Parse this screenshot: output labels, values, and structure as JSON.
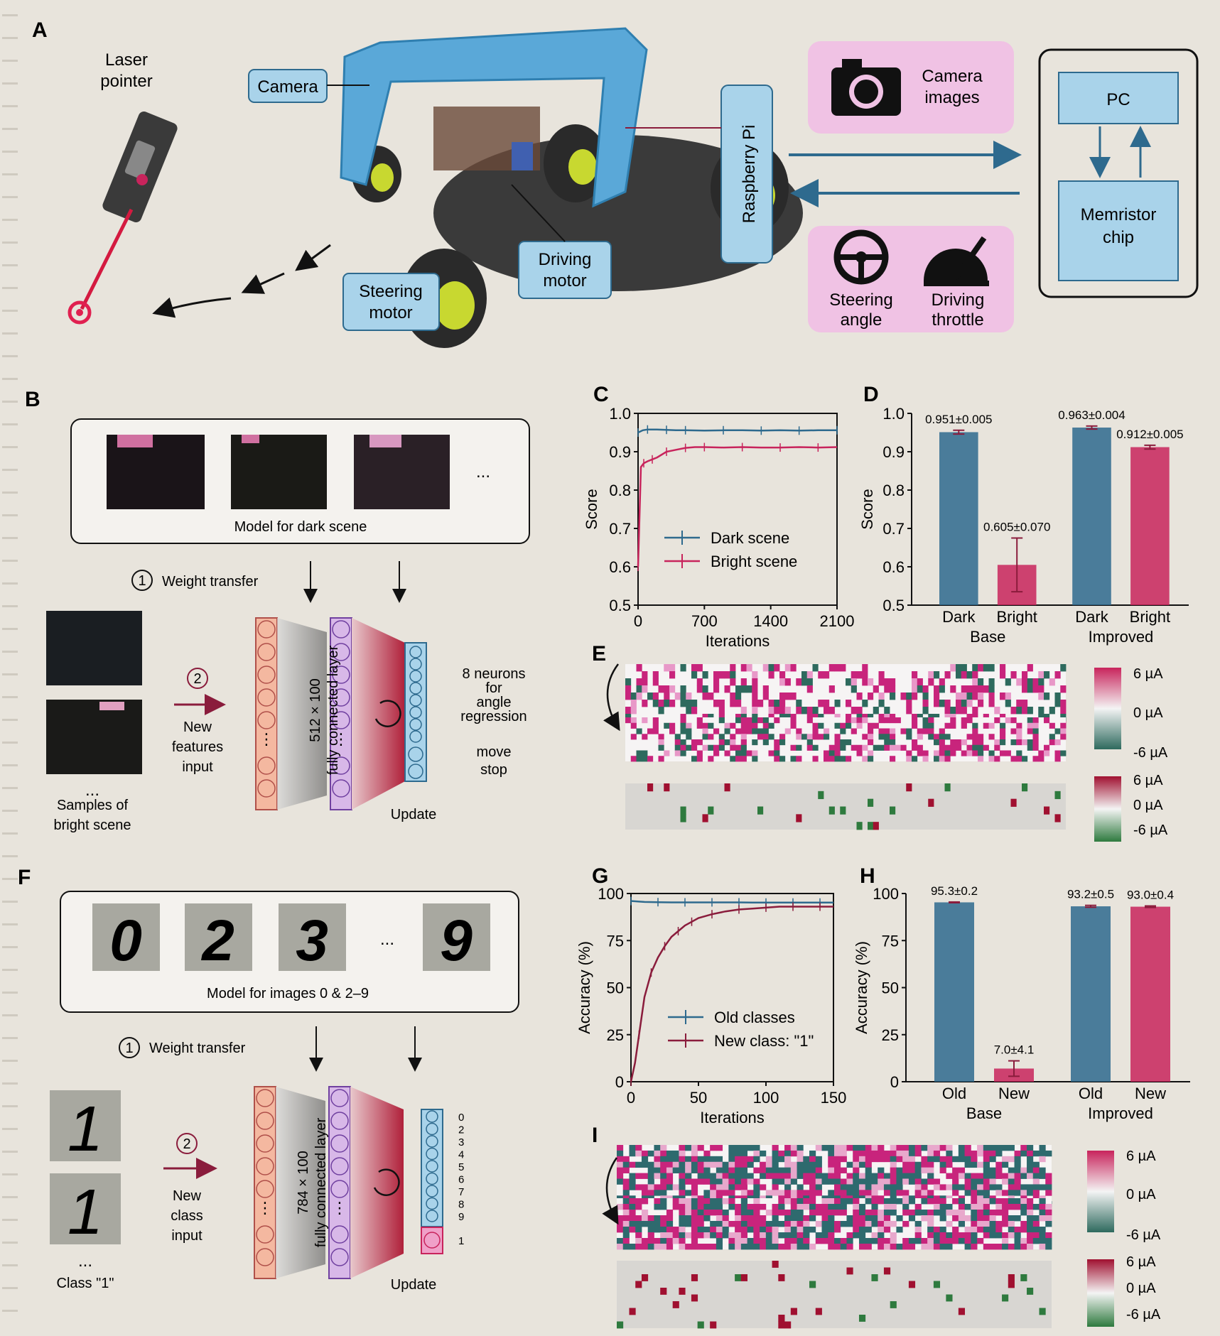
{
  "panels": [
    "A",
    "B",
    "C",
    "D",
    "E",
    "F",
    "G",
    "H",
    "I"
  ],
  "panel_a": {
    "laser": [
      "Laser",
      "pointer"
    ],
    "camera": "Camera",
    "steering_motor": [
      "Steering",
      "motor"
    ],
    "driving_motor": [
      "Driving",
      "motor"
    ],
    "raspberry": "Raspberry Pi",
    "camera_images": [
      "Camera",
      "images"
    ],
    "steering_angle": [
      "Steering",
      "angle"
    ],
    "driving_throttle": [
      "Driving",
      "throttle"
    ],
    "pc": "PC",
    "memristor": [
      "Memristor",
      "chip"
    ]
  },
  "panel_b": {
    "model_label": "Model for dark scene",
    "ellipsis": "...",
    "weight_transfer": "Weight transfer",
    "step1": "1",
    "step2": "2",
    "new_input": [
      "New",
      "features",
      "input"
    ],
    "samples": [
      "Samples of",
      "bright scene"
    ],
    "samples_dots": "...",
    "fc_layer": "512 × 100",
    "fc_sub": "fully connected layer",
    "update": "Update",
    "neurons": [
      "8 neurons",
      "for",
      "angle",
      "regression"
    ],
    "move_stop": [
      "move",
      "stop"
    ]
  },
  "panel_f": {
    "model_label": "Model for images 0 & 2–9",
    "digits": [
      "0",
      "2",
      "3",
      "9"
    ],
    "ellipsis": "...",
    "weight_transfer": "Weight transfer",
    "step1": "1",
    "step2": "2",
    "new_input": [
      "New",
      "class",
      "input"
    ],
    "class_label": "Class \"1\"",
    "class_dots": "...",
    "input_digit": "1",
    "fc_layer": "784 × 100",
    "fc_sub": "fully connected layer",
    "update": "Update",
    "out_labels": [
      "0",
      "2",
      "3",
      "4",
      "5",
      "6",
      "7",
      "8",
      "9"
    ],
    "new_out": "1"
  },
  "panel_e": {
    "colorbar1": [
      "6 µA",
      "0 µA",
      "-6 µA"
    ],
    "colorbar2": [
      "6 µA",
      "0 µA",
      "-6 µA"
    ]
  },
  "panel_i": {
    "colorbar1": [
      "6 µA",
      "0 µA",
      "-6 µA"
    ],
    "colorbar2": [
      "6 µA",
      "0 µA",
      "-6 µA"
    ]
  },
  "colors": {
    "blue": "#2e6a8e",
    "red": "#c8245c",
    "pink_bg": "#f0c2e4",
    "light_blue": "#a9d3ea"
  },
  "chart_data": [
    {
      "panel": "C",
      "type": "line",
      "xlabel": "Iterations",
      "ylabel": "Score",
      "xlim": [
        0,
        2100
      ],
      "ylim": [
        0.5,
        1.0
      ],
      "xticks": [
        "0",
        "700",
        "1400",
        "2100"
      ],
      "yticks": [
        "0.5",
        "0.6",
        "0.7",
        "0.8",
        "0.9",
        "1.0"
      ],
      "legend": "center-left",
      "series": [
        {
          "name": "Dark scene",
          "color": "#2e6a8e",
          "x": [
            0,
            50,
            100,
            200,
            300,
            400,
            500,
            700,
            900,
            1100,
            1300,
            1500,
            1700,
            1900,
            2100
          ],
          "y": [
            0.95,
            0.956,
            0.958,
            0.958,
            0.957,
            0.956,
            0.956,
            0.955,
            0.956,
            0.956,
            0.955,
            0.956,
            0.955,
            0.956,
            0.956
          ]
        },
        {
          "name": "Bright scene",
          "color": "#c8245c",
          "x": [
            0,
            30,
            60,
            100,
            150,
            200,
            300,
            400,
            500,
            600,
            700,
            900,
            1100,
            1300,
            1500,
            1700,
            1900,
            2100
          ],
          "y": [
            0.6,
            0.86,
            0.87,
            0.875,
            0.88,
            0.885,
            0.9,
            0.905,
            0.91,
            0.912,
            0.912,
            0.911,
            0.912,
            0.911,
            0.911,
            0.912,
            0.911,
            0.912
          ]
        }
      ]
    },
    {
      "panel": "D",
      "type": "bar",
      "ylabel": "Score",
      "ylim": [
        0.5,
        1.0
      ],
      "yticks": [
        "0.5",
        "0.6",
        "0.7",
        "0.8",
        "0.9",
        "1.0"
      ],
      "categories": [
        "Dark",
        "Bright",
        "Dark",
        "Bright"
      ],
      "groups": [
        "Base",
        "Improved"
      ],
      "values": [
        0.951,
        0.605,
        0.963,
        0.912
      ],
      "errors": [
        0.005,
        0.07,
        0.004,
        0.005
      ],
      "value_labels": [
        "0.951±0.005",
        "0.605±0.070",
        "0.963±0.004",
        "0.912±0.005"
      ]
    },
    {
      "panel": "G",
      "type": "line",
      "xlabel": "Iterations",
      "ylabel": "Accuracy (%)",
      "xlim": [
        0,
        150
      ],
      "ylim": [
        0,
        100
      ],
      "xticks": [
        "0",
        "50",
        "100",
        "150"
      ],
      "yticks": [
        "0",
        "25",
        "50",
        "75",
        "100"
      ],
      "legend": "bottom-center",
      "series": [
        {
          "name": "Old classes",
          "color": "#2e6a8e",
          "x": [
            0,
            10,
            20,
            30,
            40,
            50,
            60,
            70,
            80,
            90,
            100,
            110,
            120,
            130,
            140,
            150
          ],
          "y": [
            96,
            95.5,
            95.4,
            95.3,
            95.3,
            95.3,
            95.3,
            95.3,
            95.3,
            95.2,
            95.2,
            95.2,
            95.2,
            95.2,
            95.2,
            95.2
          ]
        },
        {
          "name": "New class: \"1\"",
          "color": "#8a1c3c",
          "x": [
            0,
            3,
            6,
            10,
            15,
            20,
            25,
            30,
            35,
            40,
            45,
            50,
            60,
            70,
            80,
            90,
            100,
            110,
            120,
            130,
            140,
            150
          ],
          "y": [
            0,
            10,
            25,
            45,
            58,
            66,
            72,
            77,
            80,
            83,
            85,
            87,
            89,
            90.5,
            91.5,
            92,
            92.5,
            93,
            93,
            93,
            93,
            93
          ]
        }
      ]
    },
    {
      "panel": "H",
      "type": "bar",
      "ylabel": "Accuracy (%)",
      "ylim": [
        0,
        100
      ],
      "yticks": [
        "0",
        "25",
        "50",
        "75",
        "100"
      ],
      "categories": [
        "Old",
        "New",
        "Old",
        "New"
      ],
      "groups": [
        "Base",
        "Improved"
      ],
      "values": [
        95.3,
        7.0,
        93.2,
        93.0
      ],
      "errors": [
        0.2,
        4.1,
        0.5,
        0.4
      ],
      "value_labels": [
        "95.3±0.2",
        "7.0±4.1",
        "93.2±0.5",
        "93.0±0.4"
      ]
    }
  ]
}
